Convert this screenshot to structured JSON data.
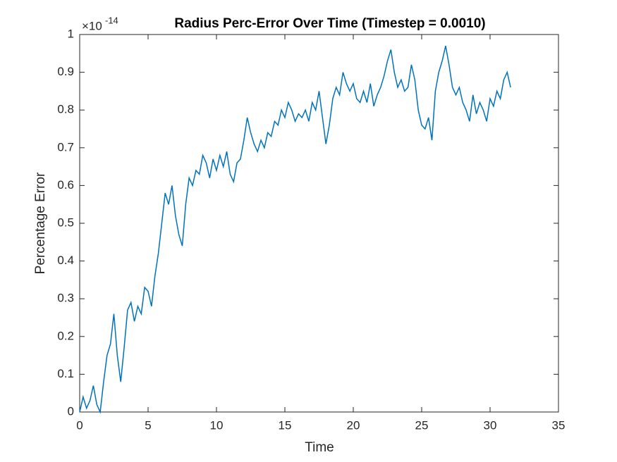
{
  "chart_data": {
    "type": "line",
    "title": "Radius Perc-Error Over Time (Timestep = 0.0010)",
    "x_label": "Time",
    "y_label": "Percentage Error",
    "y_multiplier": {
      "base": "×10",
      "exponent": "-14"
    },
    "xlim": [
      0,
      35
    ],
    "xticks": [
      0,
      5,
      10,
      15,
      20,
      25,
      30,
      35
    ],
    "ylim": [
      0,
      1
    ],
    "yticks": [
      0,
      0.1,
      0.2,
      0.3,
      0.4,
      0.5,
      0.6,
      0.7,
      0.8,
      0.9,
      1
    ],
    "grid": false,
    "x": [
      0,
      0.25,
      0.5,
      0.75,
      1,
      1.25,
      1.5,
      1.75,
      2,
      2.25,
      2.5,
      2.75,
      3,
      3.25,
      3.5,
      3.75,
      4,
      4.25,
      4.5,
      4.75,
      5,
      5.25,
      5.5,
      5.75,
      6,
      6.25,
      6.5,
      6.75,
      7,
      7.25,
      7.5,
      7.75,
      8,
      8.25,
      8.5,
      8.75,
      9,
      9.25,
      9.5,
      9.75,
      10,
      10.25,
      10.5,
      10.75,
      11,
      11.25,
      11.5,
      11.75,
      12,
      12.25,
      12.5,
      12.75,
      13,
      13.25,
      13.5,
      13.75,
      14,
      14.25,
      14.5,
      14.75,
      15,
      15.25,
      15.5,
      15.75,
      16,
      16.25,
      16.5,
      16.75,
      17,
      17.25,
      17.5,
      17.75,
      18,
      18.25,
      18.5,
      18.75,
      19,
      19.25,
      19.5,
      19.75,
      20,
      20.25,
      20.5,
      20.75,
      21,
      21.25,
      21.5,
      21.75,
      22,
      22.25,
      22.5,
      22.75,
      23,
      23.25,
      23.5,
      23.75,
      24,
      24.25,
      24.5,
      24.75,
      25,
      25.25,
      25.5,
      25.75,
      26,
      26.25,
      26.5,
      26.75,
      27,
      27.25,
      27.5,
      27.75,
      28,
      28.25,
      28.5,
      28.75,
      29,
      29.25,
      29.5,
      29.75,
      30,
      30.25,
      30.5,
      30.75,
      31,
      31.25,
      31.5
    ],
    "series": [
      {
        "name": "Percentage Error",
        "color": "#0072bd",
        "values": [
          0,
          0.04,
          0.01,
          0.03,
          0.07,
          0.02,
          0,
          0.08,
          0.15,
          0.18,
          0.26,
          0.15,
          0.08,
          0.17,
          0.27,
          0.29,
          0.24,
          0.28,
          0.26,
          0.33,
          0.32,
          0.28,
          0.36,
          0.42,
          0.5,
          0.58,
          0.55,
          0.6,
          0.52,
          0.47,
          0.44,
          0.55,
          0.62,
          0.6,
          0.64,
          0.63,
          0.68,
          0.66,
          0.62,
          0.67,
          0.64,
          0.68,
          0.65,
          0.69,
          0.63,
          0.61,
          0.66,
          0.67,
          0.72,
          0.78,
          0.74,
          0.71,
          0.69,
          0.72,
          0.7,
          0.74,
          0.73,
          0.77,
          0.76,
          0.8,
          0.78,
          0.82,
          0.8,
          0.77,
          0.79,
          0.78,
          0.8,
          0.77,
          0.82,
          0.8,
          0.85,
          0.78,
          0.71,
          0.76,
          0.83,
          0.86,
          0.84,
          0.9,
          0.87,
          0.85,
          0.87,
          0.83,
          0.82,
          0.85,
          0.82,
          0.87,
          0.81,
          0.84,
          0.86,
          0.89,
          0.93,
          0.96,
          0.9,
          0.86,
          0.88,
          0.85,
          0.86,
          0.92,
          0.88,
          0.8,
          0.76,
          0.75,
          0.78,
          0.72,
          0.85,
          0.9,
          0.93,
          0.97,
          0.92,
          0.86,
          0.84,
          0.86,
          0.82,
          0.8,
          0.77,
          0.84,
          0.79,
          0.82,
          0.8,
          0.77,
          0.83,
          0.81,
          0.85,
          0.83,
          0.88,
          0.9,
          0.86
        ]
      }
    ]
  }
}
